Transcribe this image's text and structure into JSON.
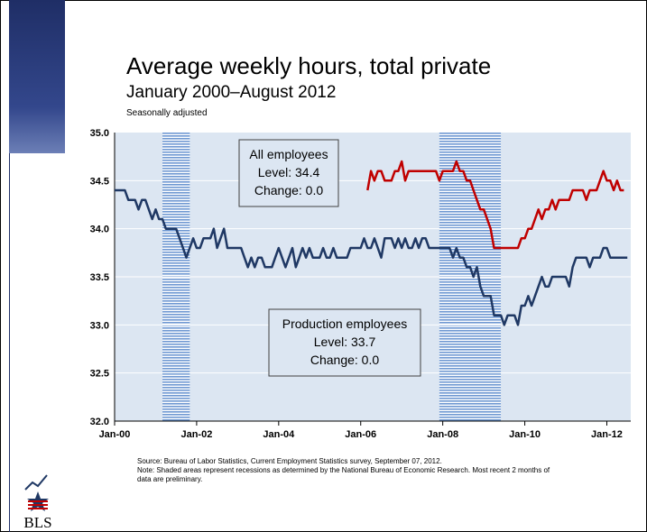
{
  "header": {
    "title": "Average weekly hours, total private",
    "subtitle": "January 2000–August 2012",
    "note": "Seasonally adjusted"
  },
  "footer": {
    "source": "Source: Bureau of Labor Statistics, Current Employment Statistics survey, September 07, 2012.",
    "note": "Note: Shaded areas represent recessions as determined by the National Bureau of Economic Research. Most recent 2 months of data are preliminary."
  },
  "logo": {
    "text": "BLS"
  },
  "chart_data": {
    "type": "line",
    "title": "Average weekly hours, total private",
    "subtitle": "January 2000–August 2012",
    "ylim": [
      32.0,
      35.0
    ],
    "y_ticks": [
      "32.0",
      "32.5",
      "33.0",
      "33.5",
      "34.0",
      "34.5",
      "35.0"
    ],
    "x_range": [
      "2000-01",
      "2012-08"
    ],
    "x_ticks": [
      "Jan-00",
      "Jan-02",
      "Jan-04",
      "Jan-06",
      "Jan-08",
      "Jan-10",
      "Jan-12"
    ],
    "grid": true,
    "recessions": [
      {
        "start": "2001-03",
        "end": "2001-11"
      },
      {
        "start": "2007-12",
        "end": "2009-06"
      }
    ],
    "series": [
      {
        "name": "Production employees",
        "color": "#1f3864",
        "start": "2000-01",
        "values": [
          34.4,
          34.4,
          34.4,
          34.4,
          34.3,
          34.3,
          34.3,
          34.2,
          34.3,
          34.3,
          34.2,
          34.1,
          34.2,
          34.1,
          34.1,
          34.0,
          34.0,
          34.0,
          34.0,
          33.9,
          33.8,
          33.7,
          33.8,
          33.9,
          33.8,
          33.8,
          33.9,
          33.9,
          33.9,
          34.0,
          33.8,
          33.9,
          34.0,
          33.8,
          33.8,
          33.8,
          33.8,
          33.8,
          33.7,
          33.6,
          33.7,
          33.6,
          33.7,
          33.7,
          33.6,
          33.6,
          33.6,
          33.7,
          33.8,
          33.7,
          33.6,
          33.7,
          33.8,
          33.6,
          33.7,
          33.8,
          33.7,
          33.8,
          33.7,
          33.7,
          33.7,
          33.8,
          33.7,
          33.7,
          33.8,
          33.7,
          33.7,
          33.7,
          33.7,
          33.8,
          33.8,
          33.8,
          33.8,
          33.9,
          33.8,
          33.8,
          33.9,
          33.8,
          33.7,
          33.9,
          33.9,
          33.9,
          33.8,
          33.9,
          33.8,
          33.9,
          33.8,
          33.8,
          33.9,
          33.8,
          33.9,
          33.9,
          33.8,
          33.8,
          33.8,
          33.8,
          33.8,
          33.8,
          33.8,
          33.7,
          33.8,
          33.7,
          33.7,
          33.6,
          33.6,
          33.5,
          33.6,
          33.4,
          33.3,
          33.3,
          33.3,
          33.1,
          33.1,
          33.1,
          33.0,
          33.1,
          33.1,
          33.1,
          33.0,
          33.2,
          33.2,
          33.3,
          33.2,
          33.3,
          33.4,
          33.5,
          33.4,
          33.4,
          33.5,
          33.5,
          33.5,
          33.5,
          33.5,
          33.4,
          33.6,
          33.7,
          33.7,
          33.7,
          33.7,
          33.6,
          33.7,
          33.7,
          33.7,
          33.8,
          33.8,
          33.7,
          33.7,
          33.7,
          33.7,
          33.7,
          33.7
        ]
      },
      {
        "name": "All employees",
        "color": "#c00000",
        "start": "2006-03",
        "values": [
          34.4,
          34.6,
          34.5,
          34.6,
          34.6,
          34.5,
          34.5,
          34.5,
          34.6,
          34.6,
          34.7,
          34.5,
          34.6,
          34.6,
          34.6,
          34.6,
          34.6,
          34.6,
          34.6,
          34.6,
          34.6,
          34.5,
          34.6,
          34.6,
          34.6,
          34.6,
          34.7,
          34.6,
          34.6,
          34.5,
          34.5,
          34.4,
          34.3,
          34.2,
          34.2,
          34.1,
          34.0,
          33.8,
          33.8,
          33.8,
          33.8,
          33.8,
          33.8,
          33.8,
          33.8,
          33.9,
          33.9,
          34.0,
          34.0,
          34.1,
          34.2,
          34.1,
          34.2,
          34.2,
          34.3,
          34.2,
          34.3,
          34.3,
          34.3,
          34.3,
          34.4,
          34.4,
          34.4,
          34.4,
          34.3,
          34.4,
          34.4,
          34.4,
          34.5,
          34.6,
          34.5,
          34.5,
          34.4,
          34.5,
          34.4,
          34.4
        ]
      }
    ],
    "annotations": [
      {
        "series": "All employees",
        "lines": [
          "All employees",
          "Level: 34.4",
          "Change: 0.0"
        ]
      },
      {
        "series": "Production employees",
        "lines": [
          "Production employees",
          "Level: 33.7",
          "Change: 0.0"
        ]
      }
    ]
  }
}
